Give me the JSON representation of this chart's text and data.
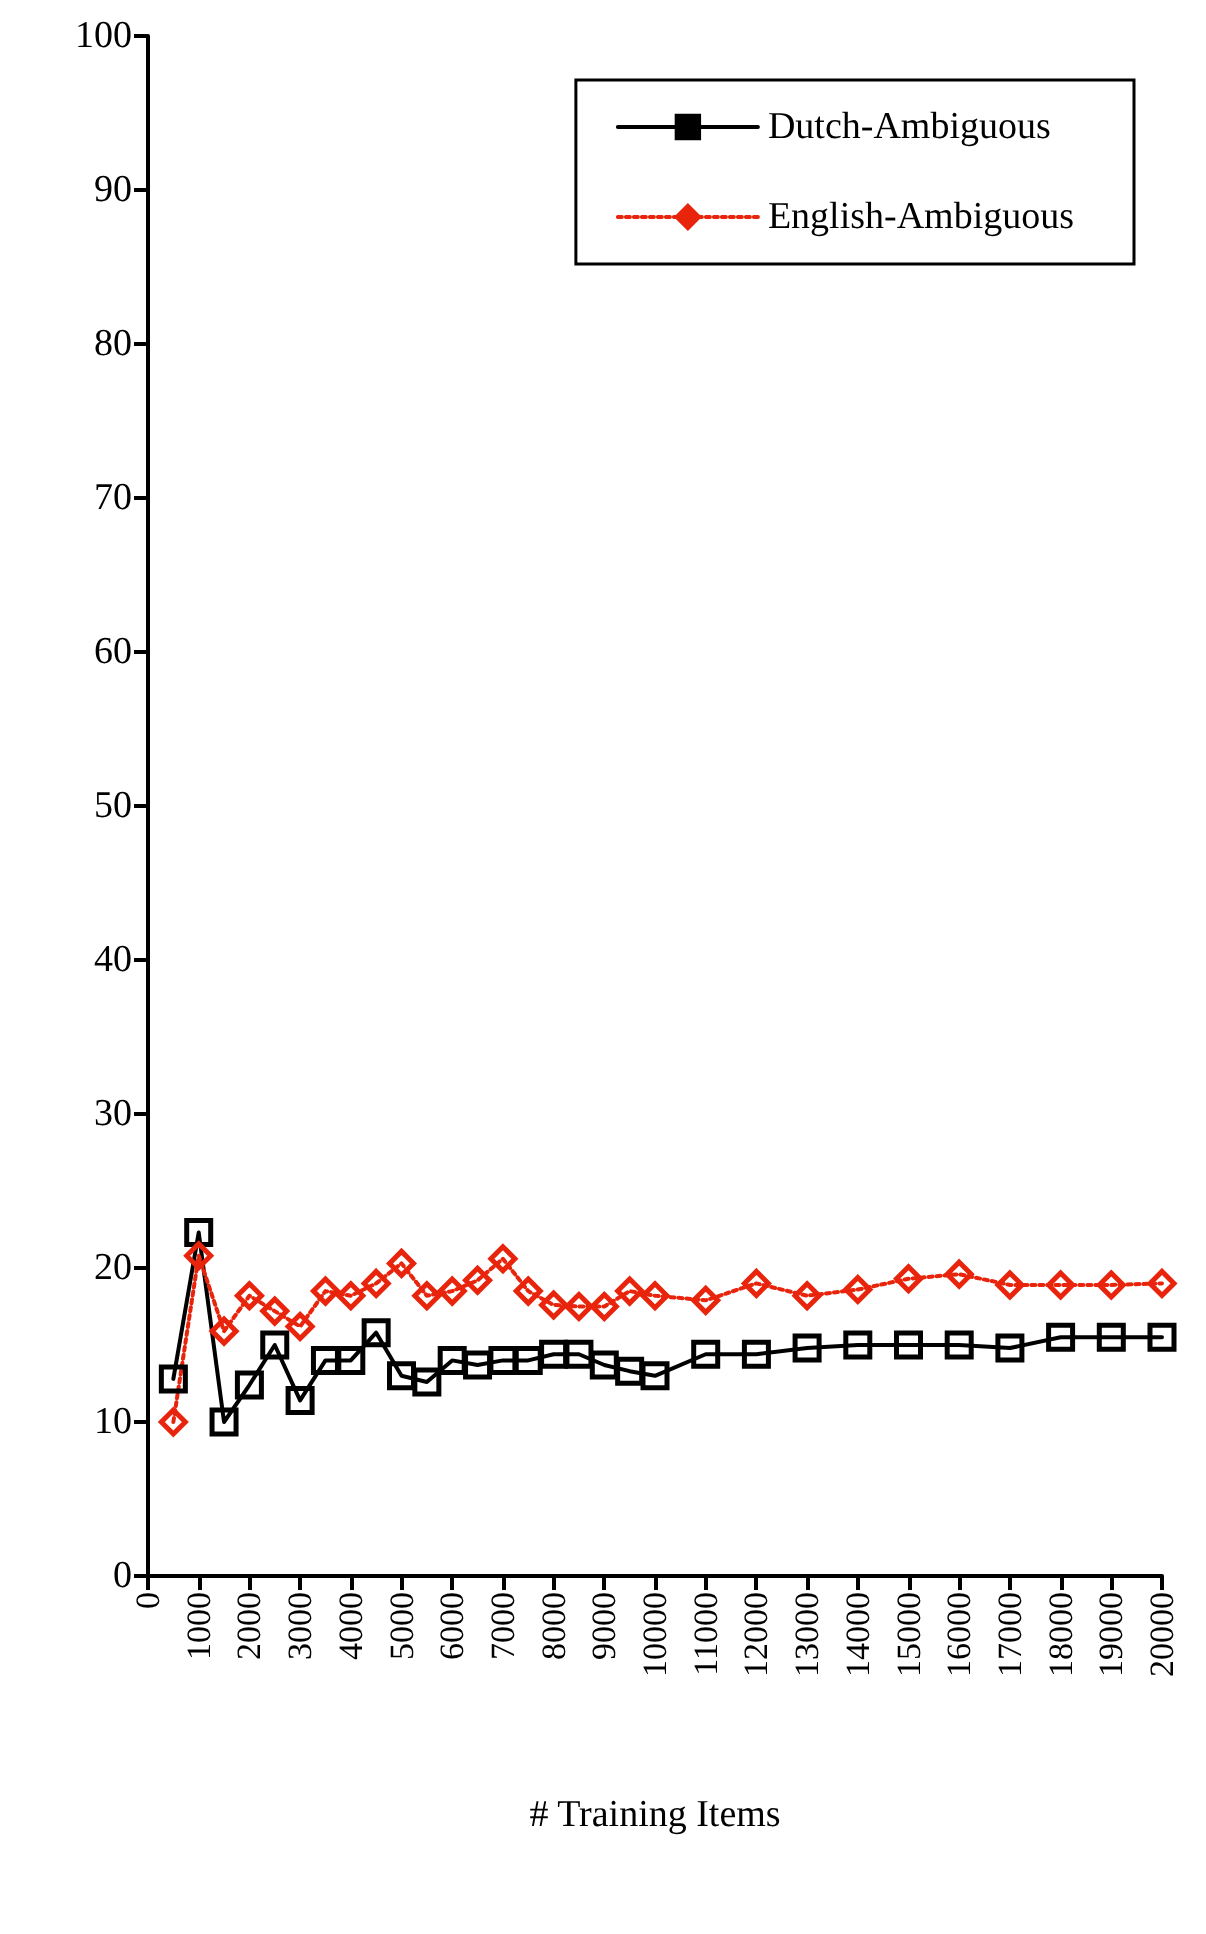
{
  "chart_data": {
    "type": "line",
    "xlabel": "# Training Items",
    "xlim": [
      0,
      20000
    ],
    "xticks": [
      0,
      1000,
      2000,
      3000,
      4000,
      5000,
      6000,
      7000,
      8000,
      9000,
      10000,
      11000,
      12000,
      13000,
      14000,
      15000,
      16000,
      17000,
      18000,
      19000,
      20000
    ],
    "ylim": [
      0,
      100
    ],
    "yticks": [
      0,
      10,
      20,
      30,
      40,
      50,
      60,
      70,
      80,
      90,
      100
    ],
    "grid": false,
    "legend": "top right",
    "x": [
      500,
      1000,
      1500,
      2000,
      2500,
      3000,
      3500,
      4000,
      4500,
      5000,
      5500,
      6000,
      6500,
      7000,
      7500,
      8000,
      8500,
      9000,
      9500,
      10000,
      11000,
      12000,
      13000,
      14000,
      15000,
      16000,
      17000,
      18000,
      19000,
      20000
    ],
    "series": [
      {
        "name": "Dutch-Ambiguous",
        "color": "#000000",
        "marker": "square",
        "line_style": "solid",
        "values": [
          12.8,
          22.3,
          10,
          12.4,
          15,
          11.4,
          14,
          14,
          15.8,
          13,
          12.6,
          14,
          13.7,
          14,
          14,
          14.4,
          14.4,
          13.7,
          13.3,
          13,
          14.4,
          14.4,
          14.8,
          15,
          15,
          15,
          14.8,
          15.5,
          15.5,
          15.5
        ]
      },
      {
        "name": "English-Ambiguous",
        "color": "#e8250c",
        "marker": "diamond",
        "line_style": "dotted",
        "values": [
          10,
          20.8,
          15.9,
          18.2,
          17.2,
          16.2,
          18.5,
          18.2,
          19,
          20.3,
          18.2,
          18.5,
          19.2,
          20.6,
          18.5,
          17.6,
          17.5,
          17.5,
          18.5,
          18.2,
          17.9,
          19,
          18.2,
          18.6,
          19.3,
          19.6,
          18.9,
          18.9,
          18.9,
          19
        ]
      }
    ]
  }
}
